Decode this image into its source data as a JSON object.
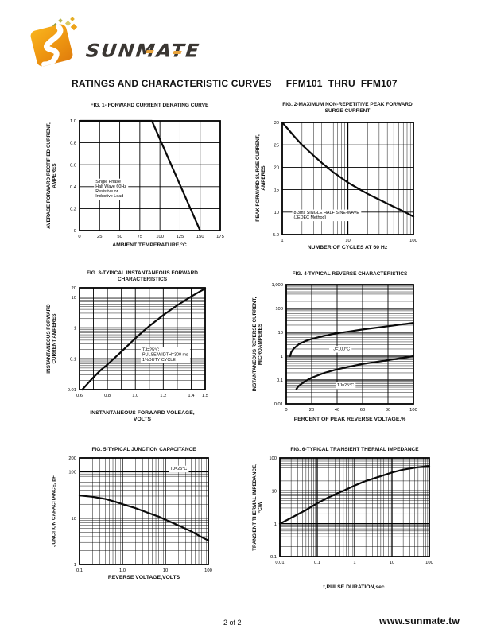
{
  "logo": {
    "brand": "SUNMATE"
  },
  "header": {
    "title": "RATINGS AND CHARACTERISTIC CURVES",
    "part_range": "FFM101  THRU  FFM107"
  },
  "footer": {
    "page_indicator": "2 of 2",
    "website": "www.sunmate.tw"
  },
  "chart_data": [
    {
      "type": "line",
      "title": "FIG. 1- FORWARD CURRENT DERATING CURVE",
      "xlabel": "AMBIENT TEMPERATURE,°C",
      "ylabel": "AVERAGE FORWARD RECTIFIED CURRENT,\nAMPERES",
      "x": {
        "scale": "linear",
        "min": 0,
        "max": 175,
        "ticks": [
          0,
          25,
          50,
          75,
          100,
          125,
          150,
          175
        ],
        "tick_labels": [
          "0",
          "25",
          "50",
          "75",
          "100",
          "125",
          "150",
          "175"
        ]
      },
      "y": {
        "scale": "linear",
        "min": 0,
        "max": 1,
        "ticks": [
          1,
          0.8,
          0.6,
          0.4,
          0.2,
          0
        ],
        "tick_labels": [
          "1.0",
          "0.8",
          "0.6",
          "0.4",
          "0.2",
          "0"
        ]
      },
      "series": [
        {
          "name": "forward-current-derating",
          "points": [
            [
              0,
              1
            ],
            [
              90,
              1
            ],
            [
              150,
              0
            ]
          ]
        }
      ],
      "annotations": [
        {
          "x": 20,
          "y": 0.45,
          "text": "Single Phase\nHalf Wave 60Hz\nResistive or\nInductive Load"
        }
      ]
    },
    {
      "type": "line",
      "title": "FIG. 2-MAXIMUM NON-REPETITIVE PEAK FORWARD\nSURGE CURRENT",
      "xlabel": "NUMBER OF CYCLES AT 60 Hz",
      "ylabel": "PEAK  FORWARD SURGE CURRENT,\nAMPERES",
      "x": {
        "scale": "log",
        "min": 1,
        "max": 100,
        "ticks": [
          1,
          10,
          100
        ],
        "tick_labels": [
          "1",
          "10",
          "100"
        ]
      },
      "y": {
        "scale": "linear",
        "min": 5,
        "max": 30,
        "ticks": [
          30,
          25,
          20,
          15,
          10,
          5
        ],
        "tick_labels": [
          "30",
          "25",
          "20",
          "15",
          "10",
          "5.0"
        ]
      },
      "series": [
        {
          "name": "peak-surge-current",
          "points": [
            [
              1,
              30
            ],
            [
              1.5,
              27
            ],
            [
              2,
              25
            ],
            [
              3,
              22.6
            ],
            [
              4,
              21
            ],
            [
              6,
              18.9
            ],
            [
              8,
              17.6
            ],
            [
              10,
              16.6
            ],
            [
              15,
              15.1
            ],
            [
              20,
              14.1
            ],
            [
              30,
              12.8
            ],
            [
              50,
              11.2
            ],
            [
              70,
              10.2
            ],
            [
              100,
              9
            ]
          ]
        }
      ],
      "annotations": [
        {
          "x": 1.5,
          "y": 10,
          "text": "8.3ms SINGLE HALF SINE-WAVE\n(JEDEC Method)"
        }
      ]
    },
    {
      "type": "line",
      "title": "FIG. 3-TYPICAL INSTANTANEOUS FORWARD\nCHARACTERISTICS",
      "xlabel": "INSTANTANEOUS FORWARD VOLEAGE,\nVOLTS",
      "ylabel": "INSTANTANEOUS FORWARD\nCURRENT,AMPERES",
      "x": {
        "scale": "linear",
        "min": 0.6,
        "max": 1.5,
        "ticks": [
          0.6,
          0.8,
          1.0,
          1.2,
          1.4,
          1.5
        ],
        "tick_labels": [
          "0.6",
          "0.8",
          "1.0",
          "1.2",
          "1.4",
          "1.5"
        ],
        "grid": [
          0.7,
          0.8,
          0.9,
          1.0,
          1.1,
          1.2,
          1.3,
          1.4
        ]
      },
      "y": {
        "scale": "log",
        "min": 0.01,
        "max": 20,
        "ticks": [
          20,
          10,
          1,
          0.1,
          0.01
        ],
        "tick_labels": [
          "20",
          "10",
          "1",
          "0.1",
          "0.01"
        ]
      },
      "series": [
        {
          "name": "instantaneous-forward",
          "points": [
            [
              0.62,
              0.01
            ],
            [
              0.68,
              0.02
            ],
            [
              0.75,
              0.042
            ],
            [
              0.8,
              0.065
            ],
            [
              0.85,
              0.105
            ],
            [
              0.9,
              0.17
            ],
            [
              0.95,
              0.28
            ],
            [
              1.0,
              0.46
            ],
            [
              1.05,
              0.73
            ],
            [
              1.1,
              1.15
            ],
            [
              1.2,
              2.6
            ],
            [
              1.3,
              5.4
            ],
            [
              1.4,
              10.5
            ],
            [
              1.5,
              19
            ]
          ]
        }
      ],
      "annotations": [
        {
          "x": 1.05,
          "y": 0.2,
          "text": "TJ=25°C\nPULSE WIDTH=300 ms\n1%DUTY CYCLE"
        }
      ]
    },
    {
      "type": "line",
      "title": "FIG. 4-TYPICAL REVERSE CHARACTERISTICS",
      "xlabel": "PERCENT OF PEAK REVERSE VOLTAGE,%",
      "ylabel": "INSTANTANEOUS REVERSE CURRENT,\nMICROAMPERES",
      "x": {
        "scale": "linear",
        "min": 0,
        "max": 100,
        "ticks": [
          0,
          20,
          40,
          60,
          80,
          100
        ],
        "tick_labels": [
          "0",
          "20",
          "40",
          "60",
          "80",
          "100"
        ]
      },
      "y": {
        "scale": "log",
        "min": 0.01,
        "max": 1000,
        "ticks": [
          1000,
          100,
          10,
          1,
          0.1,
          0.01
        ],
        "tick_labels": [
          "1,000",
          "100",
          "10",
          "1",
          "0.1",
          "0.01"
        ]
      },
      "series": [
        {
          "name": "tj-100c-curve",
          "points": [
            [
              3,
              1
            ],
            [
              4,
              1.5
            ],
            [
              6,
              2.1
            ],
            [
              10,
              3.2
            ],
            [
              15,
              4.3
            ],
            [
              20,
              5.3
            ],
            [
              30,
              7.2
            ],
            [
              40,
              9.2
            ],
            [
              50,
              11
            ],
            [
              60,
              13.2
            ],
            [
              80,
              18
            ],
            [
              100,
              25
            ]
          ]
        },
        {
          "name": "tj-25c-curve",
          "points": [
            [
              8,
              0.042
            ],
            [
              10,
              0.058
            ],
            [
              15,
              0.09
            ],
            [
              20,
              0.125
            ],
            [
              30,
              0.2
            ],
            [
              40,
              0.28
            ],
            [
              50,
              0.37
            ],
            [
              60,
              0.47
            ],
            [
              80,
              0.68
            ],
            [
              100,
              1.0
            ]
          ]
        }
      ],
      "annotations": [
        {
          "x": 35,
          "y": 2.1,
          "text": "TJ=100°C"
        },
        {
          "x": 40,
          "y": 0.062,
          "text": "TJ=25°C"
        }
      ]
    },
    {
      "type": "line",
      "title": "FIG. 5-TYPICAL JUNCTION CAPACITANCE",
      "xlabel": "REVERSE VOLTAGE,VOLTS",
      "ylabel": "JUNCTION CAPACITANCE, pF",
      "x": {
        "scale": "log",
        "min": 0.1,
        "max": 100,
        "ticks": [
          0.1,
          1,
          10,
          100
        ],
        "tick_labels": [
          "0.1",
          "1.0",
          "10",
          "100"
        ]
      },
      "y": {
        "scale": "log",
        "min": 1,
        "max": 200,
        "ticks": [
          200,
          100,
          10,
          1
        ],
        "tick_labels": [
          "200",
          "100",
          "10",
          "1"
        ]
      },
      "series": [
        {
          "name": "junction-capacitance",
          "points": [
            [
              0.1,
              31
            ],
            [
              0.2,
              29
            ],
            [
              0.4,
              26
            ],
            [
              0.7,
              22.5
            ],
            [
              1,
              20
            ],
            [
              2,
              16.5
            ],
            [
              4,
              13
            ],
            [
              7,
              10.8
            ],
            [
              10,
              9.3
            ],
            [
              20,
              7
            ],
            [
              40,
              5.2
            ],
            [
              70,
              3.9
            ],
            [
              100,
              3.3
            ]
          ]
        }
      ],
      "annotations": [
        {
          "x": 13,
          "y": 120,
          "text": "TJ=25°C"
        }
      ]
    },
    {
      "type": "line",
      "title": "FIG. 6-TYPICAL TRANSIENT THERMAL IMPEDANCE",
      "xlabel": "t,PULSE DURATION,sec.",
      "ylabel": "TRANSIENT THERMAL IMPEDANCE,\n°C/W",
      "x": {
        "scale": "log",
        "min": 0.01,
        "max": 100,
        "ticks": [
          0.01,
          0.1,
          1,
          10,
          100
        ],
        "tick_labels": [
          "0.01",
          "0.1",
          "1",
          "10",
          "100"
        ]
      },
      "y": {
        "scale": "log",
        "min": 0.1,
        "max": 100,
        "ticks": [
          100,
          10,
          1,
          0.1
        ],
        "tick_labels": [
          "100",
          "10",
          "1",
          "0.1"
        ]
      },
      "series": [
        {
          "name": "transient-thermal-impedance",
          "points": [
            [
              0.01,
              1
            ],
            [
              0.02,
              1.5
            ],
            [
              0.05,
              2.6
            ],
            [
              0.1,
              4.2
            ],
            [
              0.2,
              6.3
            ],
            [
              0.5,
              10
            ],
            [
              1,
              14.5
            ],
            [
              2,
              20
            ],
            [
              5,
              28
            ],
            [
              10,
              36
            ],
            [
              20,
              44
            ],
            [
              50,
              52
            ],
            [
              100,
              56
            ]
          ]
        }
      ],
      "annotations": []
    }
  ]
}
